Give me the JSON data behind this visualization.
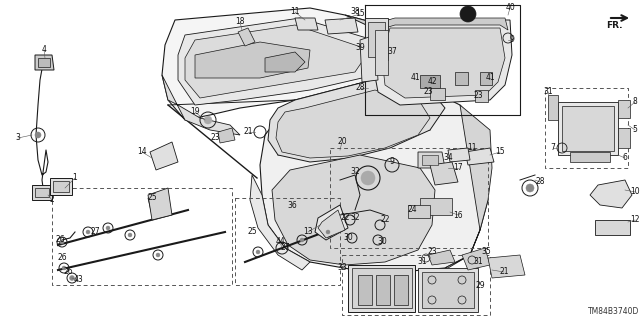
{
  "background_color": "#ffffff",
  "diagram_code": "TM84B3740D",
  "line_color": "#1a1a1a",
  "label_color": "#111111",
  "label_fs": 5.5,
  "fr_text": "FR.",
  "figsize": [
    6.4,
    3.19
  ],
  "dpi": 100
}
